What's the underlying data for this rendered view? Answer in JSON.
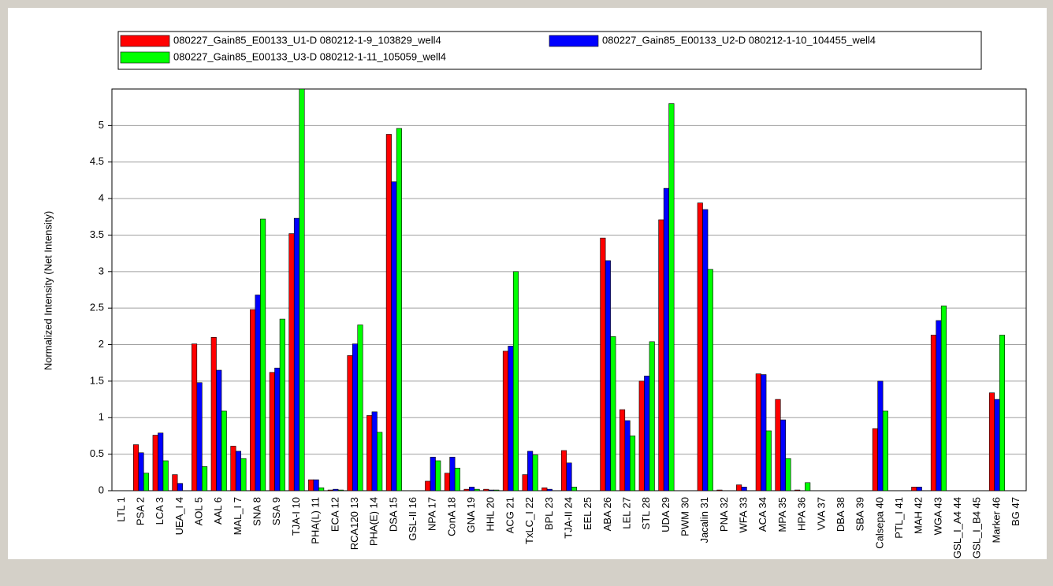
{
  "chart_data": {
    "type": "bar",
    "y_label": "Normalized Intensity (Net Intensity)",
    "categories": [
      "LTL 1",
      "PSA 2",
      "LCA 3",
      "UEA_I 4",
      "AOL 5",
      "AAL 6",
      "MAL_I 7",
      "SNA 8",
      "SSA 9",
      "TJA-I 10",
      "PHA(L) 11",
      "ECA 12",
      "RCA120 13",
      "PHA(E) 14",
      "DSA 15",
      "GSL-II 16",
      "NPA 17",
      "ConA 18",
      "GNA 19",
      "HHL 20",
      "ACG 21",
      "TxLC_I 22",
      "BPL 23",
      "TJA-II 24",
      "EEL 25",
      "ABA 26",
      "LEL 27",
      "STL 28",
      "UDA 29",
      "PWM 30",
      "Jacalin 31",
      "PNA 32",
      "WFA 33",
      "ACA 34",
      "MPA 35",
      "HPA 36",
      "VVA 37",
      "DBA 38",
      "SBA 39",
      "Calsepa 40",
      "PTL_I 41",
      "MAH 42",
      "WGA 43",
      "GSL_I_A4 44",
      "GSL_I_B4 45",
      "Marker 46",
      "BG 47"
    ],
    "series": [
      {
        "name": "080227_Gain85_E00133_U1-D 080212-1-9_103829_well4",
        "color": "#ff0000",
        "values": [
          0,
          0.63,
          0.76,
          0.22,
          2.01,
          2.1,
          0.61,
          2.48,
          1.62,
          3.52,
          0.15,
          0.01,
          1.85,
          1.03,
          4.88,
          0,
          0.13,
          0.24,
          0.02,
          0.02,
          1.91,
          0.22,
          0.04,
          0.55,
          0,
          3.46,
          1.11,
          1.5,
          3.71,
          0,
          3.94,
          0.01,
          0.08,
          1.6,
          1.25,
          0.01,
          0,
          0,
          0,
          0.85,
          0,
          0.05,
          2.13,
          0,
          0,
          1.34,
          0
        ]
      },
      {
        "name": "080227_Gain85_E00133_U2-D 080212-1-10_104455_well4",
        "color": "#0000ff",
        "values": [
          0,
          0.52,
          0.79,
          0.1,
          1.48,
          1.65,
          0.54,
          2.68,
          1.68,
          3.73,
          0.15,
          0.02,
          2.01,
          1.08,
          4.23,
          0,
          0.46,
          0.46,
          0.05,
          0.01,
          1.98,
          0.54,
          0.02,
          0.38,
          0,
          3.15,
          0.96,
          1.57,
          4.14,
          0,
          3.85,
          0,
          0.05,
          1.59,
          0.97,
          0,
          0,
          0,
          0,
          1.5,
          0,
          0.05,
          2.33,
          0,
          0,
          1.25,
          0
        ]
      },
      {
        "name": "080227_Gain85_E00133_U3-D 080212-1-11_105059_well4",
        "color": "#00ff00",
        "values": [
          0,
          0.24,
          0.41,
          0,
          0.33,
          1.09,
          0.44,
          3.72,
          2.35,
          5.5,
          0.04,
          0.01,
          2.27,
          0.8,
          4.96,
          0,
          0.41,
          0.31,
          0.02,
          0.01,
          3.0,
          0.49,
          0,
          0.05,
          0,
          2.11,
          0.75,
          2.04,
          5.3,
          0,
          3.03,
          0,
          0,
          0.82,
          0.44,
          0.11,
          0,
          0,
          0,
          1.09,
          0,
          0,
          2.53,
          0,
          0,
          2.13,
          0
        ]
      }
    ],
    "ylim": [
      0,
      5.5
    ],
    "yticks": [
      0,
      0.5,
      1,
      1.5,
      2,
      2.5,
      3,
      3.5,
      4,
      4.5,
      5
    ],
    "grid": true
  }
}
